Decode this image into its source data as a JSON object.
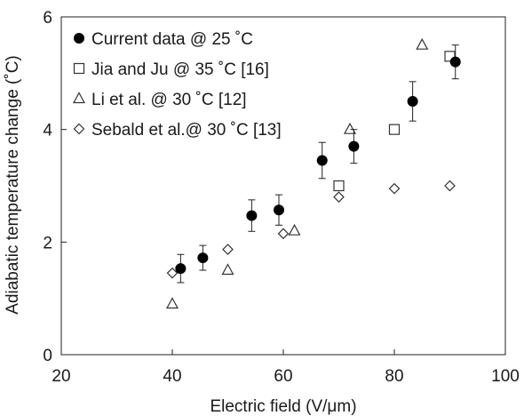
{
  "chart_data": {
    "type": "scatter",
    "xlabel": "Electric field (V/μm)",
    "ylabel": "Adiabatic temperature change (˚C)",
    "xlim": [
      20,
      100
    ],
    "ylim": [
      0,
      6
    ],
    "x_ticks": [
      "20",
      "40",
      "60",
      "80",
      "100"
    ],
    "y_ticks": [
      "0",
      "2",
      "4",
      "6"
    ],
    "grid": false,
    "legend_position": "top-left",
    "series": [
      {
        "name": "Current data @ 25 ˚C",
        "marker": "filled-circle",
        "x": [
          41.5,
          45.5,
          54.3,
          59.2,
          67.0,
          72.7,
          83.3,
          91.0
        ],
        "y": [
          1.53,
          1.72,
          2.47,
          2.57,
          3.45,
          3.7,
          4.5,
          5.2
        ],
        "error": [
          0.25,
          0.22,
          0.28,
          0.27,
          0.32,
          0.3,
          0.35,
          0.3
        ]
      },
      {
        "name": "Jia and Ju  @ 35 ˚C [16]",
        "marker": "open-square",
        "x": [
          70,
          80,
          90
        ],
        "y": [
          3.0,
          4.0,
          5.3
        ]
      },
      {
        "name": "Li et al. @ 30 ˚C [12]",
        "marker": "open-triangle",
        "x": [
          40,
          50,
          62,
          72,
          85
        ],
        "y": [
          0.9,
          1.5,
          2.2,
          4.0,
          5.5
        ]
      },
      {
        "name": "Sebald et al.@ 30 ˚C [13]",
        "marker": "open-diamond",
        "x": [
          40,
          50,
          60,
          70,
          80,
          90
        ],
        "y": [
          1.45,
          1.87,
          2.15,
          2.8,
          2.95,
          3.0
        ]
      }
    ]
  }
}
